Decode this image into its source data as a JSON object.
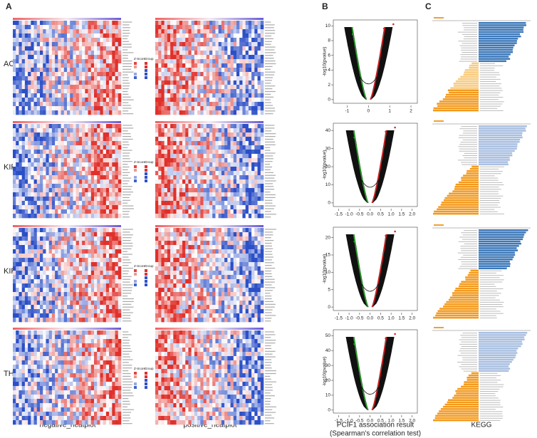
{
  "panel_labels": [
    "A",
    "B",
    "C"
  ],
  "row_labels": [
    "ACC",
    "KIRC",
    "KIRP",
    "THCA"
  ],
  "heatmap_legend": [
    "Z-Score",
    "Group"
  ],
  "captions": {
    "heatmap_negative": "negative_heatplot",
    "heatmap_positive": "positive_heatplot",
    "volcano": [
      "PCIF1 association result",
      "(Spearman's correlation test)"
    ],
    "kegg": "KEGG"
  },
  "volcano_plots": [
    {
      "ylabel": "-log10(pvalue)",
      "xlim": [
        -1.65,
        2.3
      ],
      "xticks": [
        -1,
        0,
        1,
        2
      ],
      "ylim": [
        -0.5,
        10.8
      ],
      "yticks": [
        0,
        2,
        4,
        6,
        8,
        10
      ]
    },
    {
      "ylabel": "-log10(pvalue)",
      "xlim": [
        -1.75,
        2.25
      ],
      "xticks": [
        -1.5,
        {
          "value": -1,
          "label": "-1.0"
        },
        -0.5,
        {
          "value": 0,
          "label": "0.0"
        },
        0.5,
        {
          "value": 1,
          "label": "1.0"
        },
        1.5,
        {
          "value": 2,
          "label": "2.0"
        }
      ],
      "ylim": [
        -2,
        44
      ],
      "yticks": [
        0,
        10,
        20,
        30,
        40
      ]
    },
    {
      "ylabel": "-log10(pvalue)",
      "xlim": [
        -1.75,
        2.25
      ],
      "xticks": [
        -1.5,
        {
          "value": -1,
          "label": "-1.0"
        },
        -0.5,
        {
          "value": 0,
          "label": "0.0"
        },
        0.5,
        {
          "value": 1,
          "label": "1.0"
        },
        1.5,
        {
          "value": 2,
          "label": "2.0"
        }
      ],
      "ylim": [
        -1,
        23
      ],
      "yticks": [
        0,
        5,
        10,
        15,
        20
      ]
    },
    {
      "ylabel": "-log10(pvalue)",
      "xlim": [
        -1.75,
        2.25
      ],
      "xticks": [
        -1.5,
        {
          "value": -1,
          "label": "-1.0"
        },
        -0.5,
        {
          "value": 0,
          "label": "0.0"
        },
        0.5,
        {
          "value": 1,
          "label": "1.0"
        },
        1.5,
        {
          "value": 2,
          "label": "2.0"
        }
      ],
      "ylim": [
        -2,
        54
      ],
      "yticks": [
        0,
        10,
        20,
        30,
        40,
        50
      ]
    }
  ]
}
